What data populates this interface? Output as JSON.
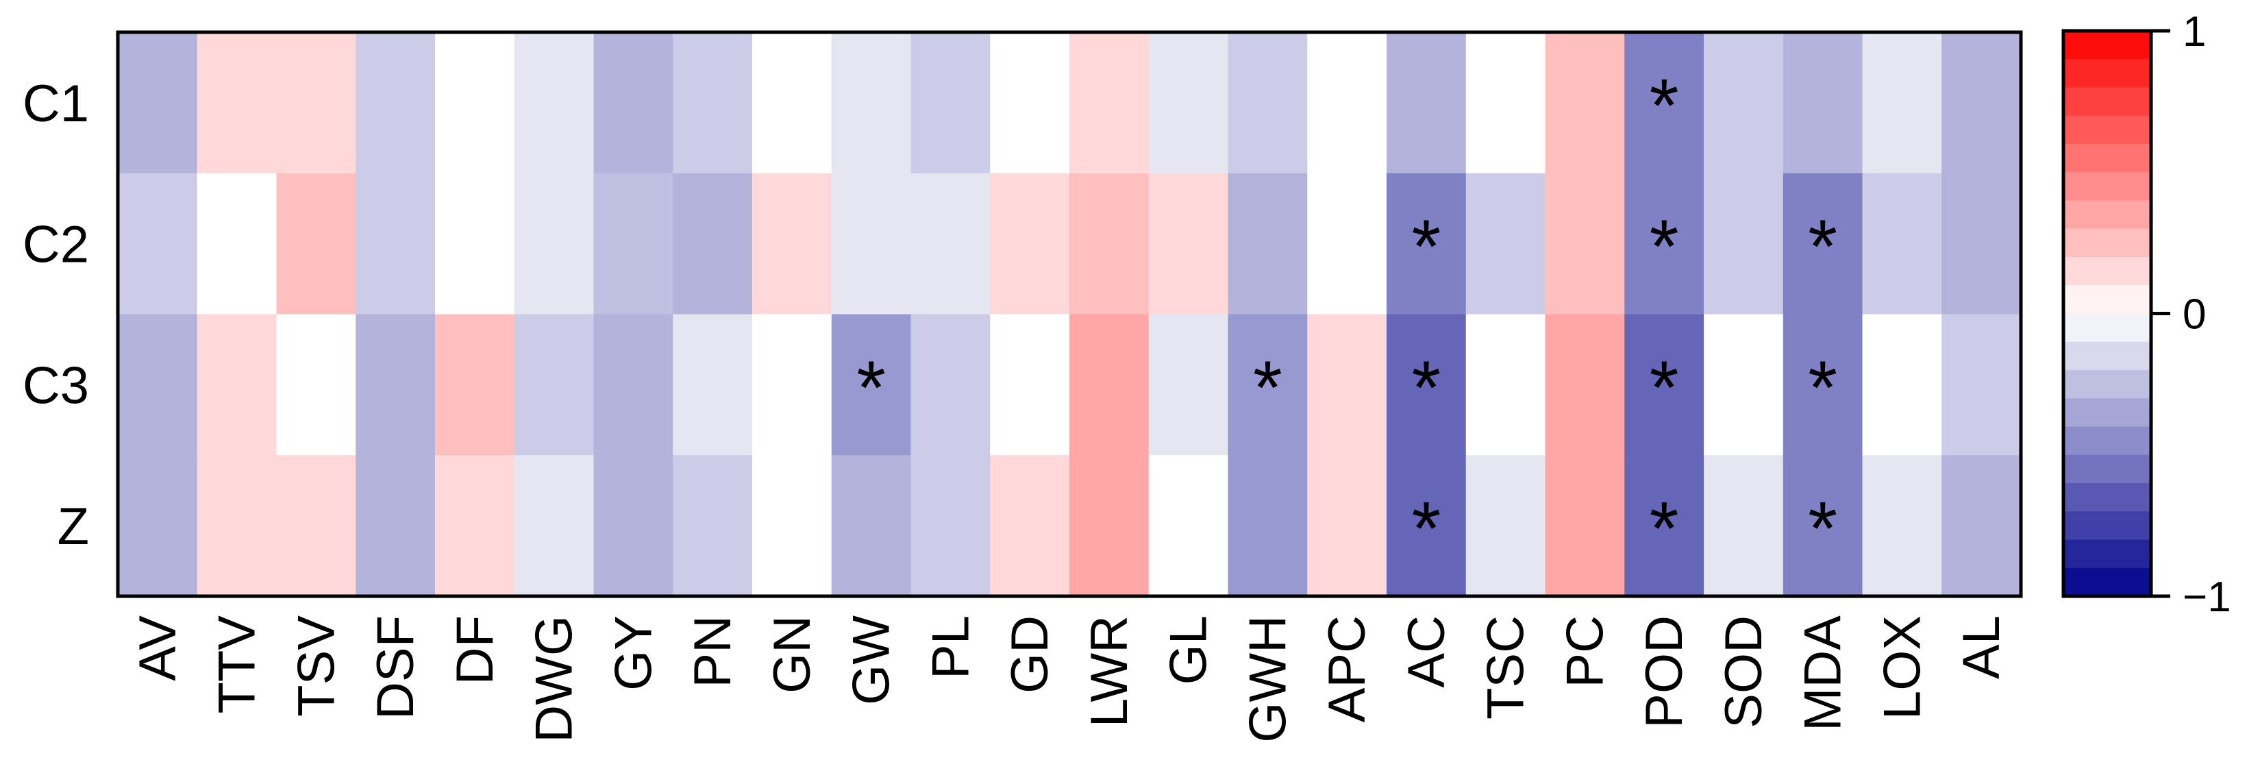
{
  "chart_data": {
    "type": "heatmap",
    "title": "",
    "xlabel": "",
    "ylabel": "",
    "rows": [
      "C1",
      "C2",
      "C3",
      "Z"
    ],
    "columns": [
      "AV",
      "TTV",
      "TSV",
      "DSF",
      "DF",
      "DWG",
      "GY",
      "PN",
      "GN",
      "GW",
      "PL",
      "GD",
      "LWR",
      "GL",
      "GWH",
      "APC",
      "AC",
      "TSC",
      "PC",
      "POD",
      "SOD",
      "MDA",
      "LOX",
      "AL"
    ],
    "values": [
      [
        -0.3,
        0.15,
        0.15,
        -0.2,
        0.0,
        -0.1,
        -0.3,
        -0.2,
        0.0,
        -0.1,
        -0.2,
        0.0,
        0.15,
        -0.1,
        -0.2,
        0.0,
        -0.3,
        0.0,
        0.25,
        -0.5,
        -0.2,
        -0.3,
        -0.1,
        -0.3
      ],
      [
        -0.2,
        0.0,
        0.25,
        -0.2,
        0.0,
        -0.1,
        -0.25,
        -0.3,
        0.15,
        -0.1,
        -0.1,
        0.15,
        0.25,
        0.15,
        -0.3,
        0.0,
        -0.5,
        -0.2,
        0.25,
        -0.5,
        -0.2,
        -0.5,
        -0.2,
        -0.3
      ],
      [
        -0.3,
        0.15,
        0.0,
        -0.3,
        0.25,
        -0.2,
        -0.3,
        -0.1,
        0.0,
        -0.4,
        -0.2,
        0.0,
        0.35,
        -0.1,
        -0.4,
        0.15,
        -0.6,
        0.0,
        0.35,
        -0.6,
        0.0,
        -0.5,
        0.0,
        -0.2
      ],
      [
        -0.3,
        0.15,
        0.15,
        -0.3,
        0.15,
        -0.1,
        -0.3,
        -0.2,
        0.0,
        -0.3,
        -0.2,
        0.15,
        0.35,
        0.0,
        -0.4,
        0.15,
        -0.6,
        -0.1,
        0.35,
        -0.6,
        -0.1,
        -0.5,
        -0.1,
        -0.3
      ]
    ],
    "significance": [
      [
        false,
        false,
        false,
        false,
        false,
        false,
        false,
        false,
        false,
        false,
        false,
        false,
        false,
        false,
        false,
        false,
        false,
        false,
        false,
        true,
        false,
        false,
        false,
        false
      ],
      [
        false,
        false,
        false,
        false,
        false,
        false,
        false,
        false,
        false,
        false,
        false,
        false,
        false,
        false,
        false,
        false,
        true,
        false,
        false,
        true,
        false,
        true,
        false,
        false
      ],
      [
        false,
        false,
        false,
        false,
        false,
        false,
        false,
        false,
        false,
        true,
        false,
        false,
        false,
        false,
        true,
        false,
        true,
        false,
        false,
        true,
        false,
        true,
        false,
        false
      ],
      [
        false,
        false,
        false,
        false,
        false,
        false,
        false,
        false,
        false,
        false,
        false,
        false,
        false,
        false,
        false,
        false,
        true,
        false,
        false,
        true,
        false,
        true,
        false,
        false
      ]
    ],
    "significance_marker": "*",
    "colorbar": {
      "min": -1,
      "max": 1,
      "ticks": [
        1,
        0,
        -1
      ],
      "tick_labels": [
        "1",
        "0",
        "−1"
      ],
      "steps": 20,
      "color_negative": "#00008b",
      "color_zero": "#ffffff",
      "color_positive": "#ff0000"
    }
  }
}
